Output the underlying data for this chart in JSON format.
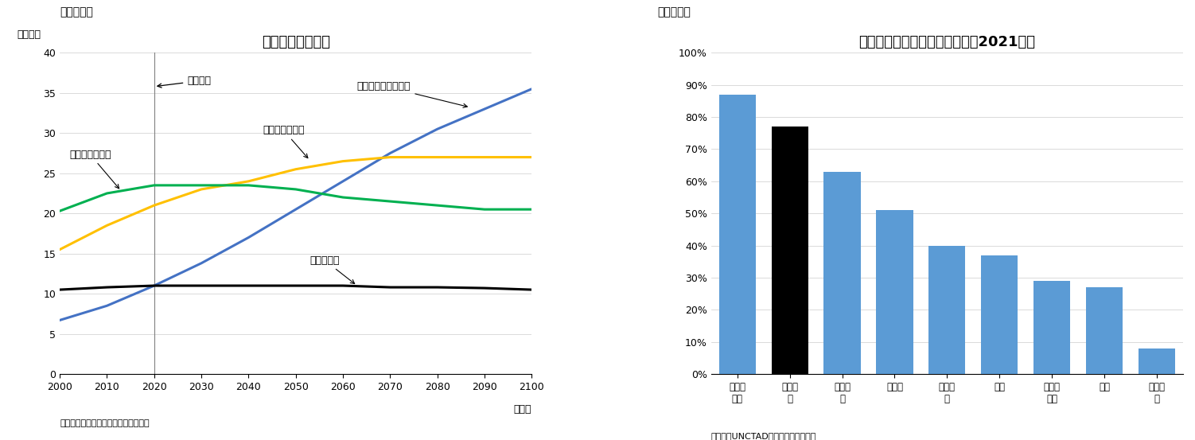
{
  "fig1_title": "人口の長期的推移",
  "fig1_label": "（図表１）",
  "fig1_ylabel": "（億人）",
  "fig1_xlabel": "（年）",
  "fig1_source": "（資料）国際連合のデータを基に作成",
  "fig1_annotation": "（推計）",
  "fig1_xlim": [
    2000,
    2100
  ],
  "fig1_ylim": [
    0,
    40
  ],
  "fig1_yticks": [
    0,
    5,
    10,
    15,
    20,
    25,
    30,
    35,
    40
  ],
  "fig1_xticks": [
    2000,
    2010,
    2020,
    2030,
    2040,
    2050,
    2060,
    2070,
    2080,
    2090,
    2100
  ],
  "fig1_vline_x": 2020,
  "series": [
    {
      "name": "サブサハラアフリカ",
      "color": "#4472C4",
      "years": [
        2000,
        2010,
        2020,
        2030,
        2040,
        2050,
        2060,
        2070,
        2080,
        2090,
        2100
      ],
      "values": [
        6.7,
        8.5,
        11.0,
        13.8,
        17.0,
        20.5,
        24.0,
        27.5,
        30.5,
        33.0,
        35.5
      ]
    },
    {
      "name": "中央・南アジア",
      "color": "#FFC000",
      "years": [
        2000,
        2010,
        2020,
        2030,
        2040,
        2050,
        2060,
        2070,
        2080,
        2090,
        2100
      ],
      "values": [
        15.5,
        18.5,
        21.0,
        23.0,
        24.0,
        25.5,
        26.5,
        27.0,
        27.0,
        27.0,
        27.0
      ]
    },
    {
      "name": "東・東南アジア",
      "color": "#00B050",
      "years": [
        2000,
        2010,
        2020,
        2030,
        2040,
        2050,
        2060,
        2070,
        2080,
        2090,
        2100
      ],
      "values": [
        20.3,
        22.5,
        23.5,
        23.5,
        23.5,
        23.0,
        22.0,
        21.5,
        21.0,
        20.5,
        20.5
      ]
    },
    {
      "name": "欧州・北米",
      "color": "#000000",
      "years": [
        2000,
        2010,
        2020,
        2030,
        2040,
        2050,
        2060,
        2070,
        2080,
        2090,
        2100
      ],
      "values": [
        10.5,
        10.8,
        11.0,
        11.0,
        11.0,
        11.0,
        11.0,
        10.8,
        10.8,
        10.7,
        10.5
      ]
    }
  ],
  "fig2_title": "地域別の一次産品輸出の割合（2021年）",
  "fig2_label": "（図表２）",
  "fig2_source": "（資料）UNCTADのデータを基に作成",
  "fig2_ylim": [
    0,
    1.0
  ],
  "fig2_yticks": [
    0,
    0.1,
    0.2,
    0.3,
    0.4,
    0.5,
    0.6,
    0.7,
    0.8,
    0.9,
    1.0
  ],
  "fig2_categories": [
    "オセア\nニア",
    "アフリ\nカ",
    "西アジ\nア",
    "中南米",
    "南アジ\nア",
    "北米",
    "東南ア\nジア",
    "欧州",
    "東アジ\nア"
  ],
  "fig2_values": [
    0.87,
    0.77,
    0.63,
    0.51,
    0.4,
    0.37,
    0.29,
    0.27,
    0.08
  ],
  "fig2_colors": [
    "#5B9BD5",
    "#000000",
    "#5B9BD5",
    "#5B9BD5",
    "#5B9BD5",
    "#5B9BD5",
    "#5B9BD5",
    "#5B9BD5",
    "#5B9BD5"
  ]
}
